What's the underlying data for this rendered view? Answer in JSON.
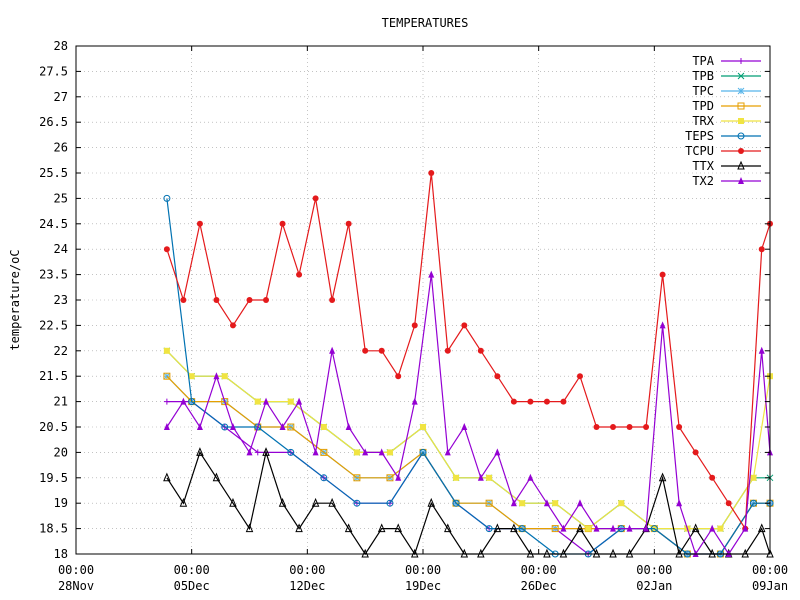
{
  "chart_data": {
    "type": "line",
    "title": "TEMPERATURES",
    "xlabel": "",
    "ylabel": "temperature/oC",
    "grid": true,
    "legend_position": "top-right",
    "x_range": [
      "2020-11-28T00:00",
      "2021-01-09T00:00"
    ],
    "ylim": [
      18,
      28
    ],
    "y_ticks": [
      "18",
      "18.5",
      "19",
      "19.5",
      "20",
      "20.5",
      "21",
      "21.5",
      "22",
      "22.5",
      "23",
      "23.5",
      "24",
      "24.5",
      "25",
      "25.5",
      "26",
      "26.5",
      "27",
      "27.5",
      "28"
    ],
    "x_ticks": [
      {
        "time": "00:00",
        "date": "28Nov",
        "day": 0
      },
      {
        "time": "00:00",
        "date": "05Dec",
        "day": 7
      },
      {
        "time": "00:00",
        "date": "12Dec",
        "day": 14
      },
      {
        "time": "00:00",
        "date": "19Dec",
        "day": 21
      },
      {
        "time": "00:00",
        "date": "26Dec",
        "day": 28
      },
      {
        "time": "00:00",
        "date": "02Jan",
        "day": 35
      },
      {
        "time": "00:00",
        "date": "09Jan",
        "day": 42
      }
    ],
    "series": [
      {
        "name": "TPA",
        "color": "#9400d3",
        "marker": "plus",
        "points": [
          [
            5.5,
            21
          ],
          [
            7,
            21
          ],
          [
            9,
            20.5
          ],
          [
            11,
            20
          ],
          [
            13,
            20
          ],
          [
            15,
            19.5
          ],
          [
            17,
            19
          ],
          [
            19,
            19
          ],
          [
            21,
            20
          ],
          [
            23,
            19
          ],
          [
            25,
            18.5
          ],
          [
            27,
            18.5
          ],
          [
            29,
            18.5
          ],
          [
            31,
            18
          ],
          [
            33,
            18.5
          ],
          [
            35,
            18.5
          ],
          [
            37,
            18
          ],
          [
            39,
            18
          ],
          [
            41,
            19
          ],
          [
            42,
            19
          ]
        ]
      },
      {
        "name": "TPB",
        "color": "#009e73",
        "marker": "x",
        "points": [
          [
            5.5,
            22
          ],
          [
            7,
            21.5
          ],
          [
            9,
            21.5
          ],
          [
            11,
            21
          ],
          [
            13,
            21
          ],
          [
            15,
            20.5
          ],
          [
            17,
            20
          ],
          [
            19,
            20
          ],
          [
            21,
            20.5
          ],
          [
            23,
            19.5
          ],
          [
            25,
            19.5
          ],
          [
            27,
            19
          ],
          [
            29,
            19
          ],
          [
            31,
            18.5
          ],
          [
            33,
            19
          ],
          [
            35,
            18.5
          ],
          [
            37,
            18.5
          ],
          [
            39,
            18.5
          ],
          [
            41,
            19.5
          ],
          [
            42,
            19.5
          ]
        ]
      },
      {
        "name": "TPC",
        "color": "#56b4e9",
        "marker": "star",
        "points": [
          [
            5.5,
            21.5
          ],
          [
            7,
            21
          ],
          [
            9,
            21
          ],
          [
            11,
            20.5
          ],
          [
            13,
            20.5
          ],
          [
            15,
            20
          ],
          [
            17,
            19.5
          ],
          [
            19,
            19.5
          ],
          [
            21,
            20
          ],
          [
            23,
            19
          ],
          [
            25,
            19
          ],
          [
            27,
            18.5
          ],
          [
            29,
            18.5
          ],
          [
            31,
            18.5
          ],
          [
            33,
            18.5
          ],
          [
            35,
            18.5
          ],
          [
            37,
            18
          ],
          [
            39,
            18
          ],
          [
            41,
            19
          ],
          [
            42,
            19
          ]
        ]
      },
      {
        "name": "TPD",
        "color": "#e69f00",
        "marker": "square",
        "points": [
          [
            5.5,
            21.5
          ],
          [
            7,
            21
          ],
          [
            9,
            21
          ],
          [
            11,
            20.5
          ],
          [
            13,
            20.5
          ],
          [
            15,
            20
          ],
          [
            17,
            19.5
          ],
          [
            19,
            19.5
          ],
          [
            21,
            20
          ],
          [
            23,
            19
          ],
          [
            25,
            19
          ],
          [
            27,
            18.5
          ],
          [
            29,
            18.5
          ],
          [
            31,
            18.5
          ],
          [
            33,
            18.5
          ],
          [
            35,
            18.5
          ],
          [
            37,
            18
          ],
          [
            39,
            18
          ],
          [
            41,
            19
          ],
          [
            42,
            19
          ]
        ]
      },
      {
        "name": "TRX",
        "color": "#f0e442",
        "marker": "filled-square",
        "points": [
          [
            5.5,
            22
          ],
          [
            7,
            21.5
          ],
          [
            9,
            21.5
          ],
          [
            11,
            21
          ],
          [
            13,
            21
          ],
          [
            15,
            20.5
          ],
          [
            17,
            20
          ],
          [
            19,
            20
          ],
          [
            21,
            20.5
          ],
          [
            23,
            19.5
          ],
          [
            25,
            19.5
          ],
          [
            27,
            19
          ],
          [
            29,
            19
          ],
          [
            31,
            18.5
          ],
          [
            33,
            19
          ],
          [
            35,
            18.5
          ],
          [
            37,
            18.5
          ],
          [
            39,
            18.5
          ],
          [
            41,
            19.5
          ],
          [
            42,
            21.5
          ]
        ]
      },
      {
        "name": "TEPS",
        "color": "#0072b2",
        "marker": "circle",
        "points": [
          [
            5.5,
            25
          ],
          [
            7,
            21
          ],
          [
            9,
            20.5
          ],
          [
            11,
            20.5
          ],
          [
            13,
            20
          ],
          [
            15,
            19.5
          ],
          [
            17,
            19
          ],
          [
            19,
            19
          ],
          [
            21,
            20
          ],
          [
            23,
            19
          ],
          [
            25,
            18.5
          ],
          [
            27,
            18.5
          ],
          [
            29,
            18
          ],
          [
            31,
            18
          ],
          [
            33,
            18.5
          ],
          [
            35,
            18.5
          ],
          [
            37,
            18
          ],
          [
            39,
            18
          ],
          [
            41,
            19
          ],
          [
            42,
            19
          ]
        ]
      },
      {
        "name": "TCPU",
        "color": "#e41a1c",
        "marker": "filled-circle",
        "points": [
          [
            5.5,
            24
          ],
          [
            6.5,
            23
          ],
          [
            7.5,
            24.5
          ],
          [
            8.5,
            23
          ],
          [
            9.5,
            22.5
          ],
          [
            10.5,
            23
          ],
          [
            11.5,
            23
          ],
          [
            12.5,
            24.5
          ],
          [
            13.5,
            23.5
          ],
          [
            14.5,
            25
          ],
          [
            15.5,
            23
          ],
          [
            16.5,
            24.5
          ],
          [
            17.5,
            22
          ],
          [
            18.5,
            22
          ],
          [
            19.5,
            21.5
          ],
          [
            20.5,
            22.5
          ],
          [
            21.5,
            25.5
          ],
          [
            22.5,
            22
          ],
          [
            23.5,
            22.5
          ],
          [
            24.5,
            22
          ],
          [
            25.5,
            21.5
          ],
          [
            26.5,
            21
          ],
          [
            27.5,
            21
          ],
          [
            28.5,
            21
          ],
          [
            29.5,
            21
          ],
          [
            30.5,
            21.5
          ],
          [
            31.5,
            20.5
          ],
          [
            32.5,
            20.5
          ],
          [
            33.5,
            20.5
          ],
          [
            34.5,
            20.5
          ],
          [
            35.5,
            23.5
          ],
          [
            36.5,
            20.5
          ],
          [
            37.5,
            20
          ],
          [
            38.5,
            19.5
          ],
          [
            39.5,
            19
          ],
          [
            40.5,
            18.5
          ],
          [
            41.5,
            24
          ],
          [
            42,
            24.5
          ]
        ]
      },
      {
        "name": "TTX",
        "color": "#000000",
        "marker": "triangle",
        "points": [
          [
            5.5,
            19.5
          ],
          [
            6.5,
            19
          ],
          [
            7.5,
            20
          ],
          [
            8.5,
            19.5
          ],
          [
            9.5,
            19
          ],
          [
            10.5,
            18.5
          ],
          [
            11.5,
            20
          ],
          [
            12.5,
            19
          ],
          [
            13.5,
            18.5
          ],
          [
            14.5,
            19
          ],
          [
            15.5,
            19
          ],
          [
            16.5,
            18.5
          ],
          [
            17.5,
            18
          ],
          [
            18.5,
            18.5
          ],
          [
            19.5,
            18.5
          ],
          [
            20.5,
            18
          ],
          [
            21.5,
            19
          ],
          [
            22.5,
            18.5
          ],
          [
            23.5,
            18
          ],
          [
            24.5,
            18
          ],
          [
            25.5,
            18.5
          ],
          [
            26.5,
            18.5
          ],
          [
            27.5,
            18
          ],
          [
            28.5,
            18
          ],
          [
            29.5,
            18
          ],
          [
            30.5,
            18.5
          ],
          [
            31.5,
            18
          ],
          [
            32.5,
            18
          ],
          [
            33.5,
            18
          ],
          [
            34.5,
            18.5
          ],
          [
            35.5,
            19.5
          ],
          [
            36.5,
            18
          ],
          [
            37.5,
            18.5
          ],
          [
            38.5,
            18
          ],
          [
            39.5,
            18
          ],
          [
            40.5,
            18
          ],
          [
            41.5,
            18.5
          ],
          [
            42,
            18
          ]
        ]
      },
      {
        "name": "TX2",
        "color": "#9400d3",
        "marker": "filled-triangle",
        "points": [
          [
            5.5,
            20.5
          ],
          [
            6.5,
            21
          ],
          [
            7.5,
            20.5
          ],
          [
            8.5,
            21.5
          ],
          [
            9.5,
            20.5
          ],
          [
            10.5,
            20
          ],
          [
            11.5,
            21
          ],
          [
            12.5,
            20.5
          ],
          [
            13.5,
            21
          ],
          [
            14.5,
            20
          ],
          [
            15.5,
            22
          ],
          [
            16.5,
            20.5
          ],
          [
            17.5,
            20
          ],
          [
            18.5,
            20
          ],
          [
            19.5,
            19.5
          ],
          [
            20.5,
            21
          ],
          [
            21.5,
            23.5
          ],
          [
            22.5,
            20
          ],
          [
            23.5,
            20.5
          ],
          [
            24.5,
            19.5
          ],
          [
            25.5,
            20
          ],
          [
            26.5,
            19
          ],
          [
            27.5,
            19.5
          ],
          [
            28.5,
            19
          ],
          [
            29.5,
            18.5
          ],
          [
            30.5,
            19
          ],
          [
            31.5,
            18.5
          ],
          [
            32.5,
            18.5
          ],
          [
            33.5,
            18.5
          ],
          [
            34.5,
            18.5
          ],
          [
            35.5,
            22.5
          ],
          [
            36.5,
            19
          ],
          [
            37.5,
            18
          ],
          [
            38.5,
            18.5
          ],
          [
            39.5,
            18
          ],
          [
            40.5,
            18.5
          ],
          [
            41.5,
            22
          ],
          [
            42,
            20
          ]
        ]
      }
    ]
  }
}
